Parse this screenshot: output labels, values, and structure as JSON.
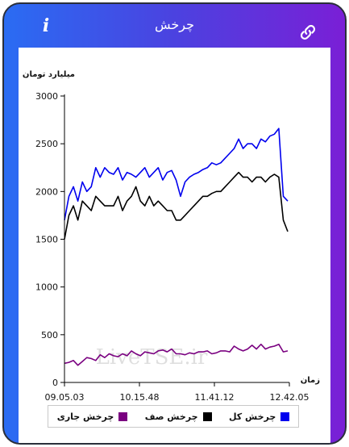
{
  "header": {
    "title": "چرخش",
    "info_label": "i",
    "info_icon": "info-icon",
    "link_icon": "link-icon"
  },
  "chart_data": {
    "type": "line",
    "ylabel": "میلیارد تومان",
    "xlabel": "زمان",
    "ylim": [
      0,
      3000
    ],
    "yticks": [
      0,
      500,
      1000,
      1500,
      2000,
      2500,
      3000
    ],
    "xticks": [
      "09.05.03",
      "10.15.48",
      "11.41.12",
      "12.42.05"
    ],
    "watermark": "LiveTSE.ir",
    "series": [
      {
        "name": "چرخش کل",
        "color": "#0000ee",
        "values": [
          1700,
          1950,
          2050,
          1900,
          2100,
          2000,
          2050,
          2250,
          2150,
          2250,
          2200,
          2180,
          2250,
          2120,
          2200,
          2180,
          2150,
          2200,
          2250,
          2150,
          2200,
          2250,
          2120,
          2200,
          2220,
          2120,
          1950,
          2100,
          2150,
          2180,
          2200,
          2230,
          2250,
          2300,
          2280,
          2300,
          2350,
          2400,
          2450,
          2550,
          2450,
          2500,
          2500,
          2450,
          2550,
          2520,
          2580,
          2600,
          2660,
          1950,
          1900
        ]
      },
      {
        "name": "چرخش صف",
        "color": "#000000",
        "values": [
          1500,
          1750,
          1850,
          1700,
          1900,
          1850,
          1800,
          1950,
          1900,
          1850,
          1850,
          1850,
          1950,
          1800,
          1900,
          1950,
          2050,
          1900,
          1850,
          1950,
          1850,
          1900,
          1850,
          1800,
          1800,
          1700,
          1700,
          1750,
          1800,
          1850,
          1900,
          1950,
          1950,
          1980,
          2000,
          2000,
          2050,
          2100,
          2150,
          2200,
          2150,
          2150,
          2100,
          2150,
          2150,
          2100,
          2150,
          2180,
          2150,
          1700,
          1580
        ]
      },
      {
        "name": "چرخش جاری",
        "color": "#7a0080",
        "values": [
          200,
          210,
          230,
          180,
          220,
          260,
          250,
          230,
          290,
          260,
          300,
          280,
          270,
          300,
          280,
          330,
          300,
          280,
          320,
          310,
          300,
          330,
          340,
          320,
          350,
          300,
          300,
          290,
          310,
          300,
          320,
          320,
          330,
          300,
          310,
          330,
          330,
          320,
          380,
          350,
          330,
          350,
          390,
          350,
          400,
          350,
          370,
          380,
          400,
          320,
          330
        ]
      }
    ]
  }
}
